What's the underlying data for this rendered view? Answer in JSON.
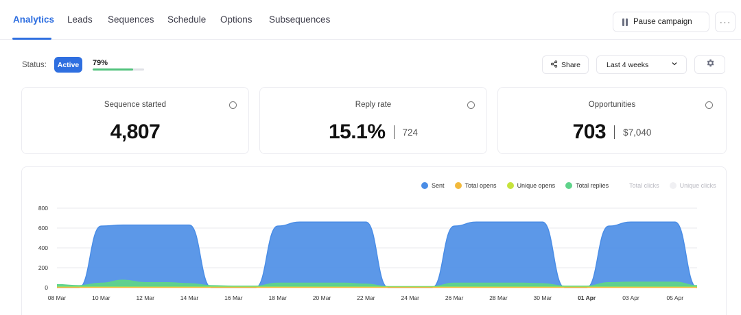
{
  "nav": {
    "tabs": [
      {
        "label": "Analytics",
        "active": true
      },
      {
        "label": "Leads"
      },
      {
        "label": "Sequences"
      },
      {
        "label": "Schedule"
      },
      {
        "label": "Options"
      },
      {
        "label": "Subsequences"
      }
    ],
    "pause_label": "Pause campaign",
    "more_label": "···"
  },
  "status": {
    "label": "Status:",
    "badge": "Active",
    "progress_text": "79%",
    "progress_value": 0.79
  },
  "toolbar": {
    "share_label": "Share",
    "range_value": "Last 4 weeks"
  },
  "cards": [
    {
      "title": "Sequence started",
      "value": "4,807",
      "sub": ""
    },
    {
      "title": "Reply rate",
      "value": "15.1%",
      "sub": "724"
    },
    {
      "title": "Opportunities",
      "value": "703",
      "sub": "$7,040"
    }
  ],
  "colors": {
    "accent": "#2f6fe0",
    "sent": "#4a8de6",
    "total_opens": "#f2b93b",
    "unique_opens": "#c6e33c",
    "total_replies": "#5fd38a",
    "muted": "#d6d6dc"
  },
  "chart_data": {
    "type": "area",
    "ylim": [
      0,
      800
    ],
    "yticks": [
      0,
      200,
      400,
      600,
      800
    ],
    "x_labels": [
      "08 Mar",
      "10 Mar",
      "12 Mar",
      "14 Mar",
      "16 Mar",
      "18 Mar",
      "20 Mar",
      "22 Mar",
      "24 Mar",
      "26 Mar",
      "28 Mar",
      "30 Mar",
      "01 Apr",
      "03 Apr",
      "05 Apr"
    ],
    "x_labels_bold": [
      "01 Apr"
    ],
    "x": [
      "08 Mar",
      "09 Mar",
      "10 Mar",
      "11 Mar",
      "12 Mar",
      "13 Mar",
      "14 Mar",
      "15 Mar",
      "16 Mar",
      "17 Mar",
      "18 Mar",
      "19 Mar",
      "20 Mar",
      "21 Mar",
      "22 Mar",
      "23 Mar",
      "24 Mar",
      "25 Mar",
      "26 Mar",
      "27 Mar",
      "28 Mar",
      "29 Mar",
      "30 Mar",
      "31 Mar",
      "01 Apr",
      "02 Apr",
      "03 Apr",
      "04 Apr",
      "05 Apr",
      "06 Apr"
    ],
    "legend": [
      {
        "name": "Sent",
        "color": "#4a8de6",
        "muted": false
      },
      {
        "name": "Total opens",
        "color": "#f2b93b",
        "muted": false
      },
      {
        "name": "Unique opens",
        "color": "#c6e33c",
        "muted": false
      },
      {
        "name": "Total replies",
        "color": "#5fd38a",
        "muted": false
      },
      {
        "name": "Total clicks",
        "color": "#ffffff",
        "muted": true
      },
      {
        "name": "Unique clicks",
        "color": "#f0f0f3",
        "muted": true
      }
    ],
    "series": [
      {
        "name": "Sent",
        "values": [
          0,
          0,
          620,
          630,
          630,
          630,
          630,
          0,
          0,
          0,
          620,
          660,
          660,
          660,
          660,
          0,
          0,
          0,
          620,
          660,
          660,
          660,
          660,
          0,
          0,
          620,
          660,
          660,
          660,
          0
        ]
      },
      {
        "name": "Total replies",
        "values": [
          30,
          20,
          45,
          75,
          50,
          50,
          40,
          20,
          15,
          15,
          45,
          45,
          45,
          45,
          35,
          10,
          10,
          10,
          45,
          45,
          45,
          45,
          40,
          15,
          15,
          50,
          55,
          55,
          55,
          20
        ]
      },
      {
        "name": "Unique opens",
        "values": [
          5,
          5,
          5,
          5,
          5,
          5,
          5,
          5,
          5,
          5,
          5,
          5,
          5,
          5,
          5,
          5,
          5,
          5,
          5,
          5,
          5,
          5,
          5,
          5,
          5,
          5,
          5,
          5,
          5,
          5
        ]
      },
      {
        "name": "Total opens",
        "values": [
          2,
          2,
          2,
          2,
          2,
          2,
          2,
          2,
          2,
          2,
          2,
          2,
          2,
          2,
          2,
          2,
          2,
          2,
          2,
          2,
          2,
          2,
          2,
          2,
          2,
          2,
          2,
          2,
          2,
          2
        ]
      }
    ]
  }
}
